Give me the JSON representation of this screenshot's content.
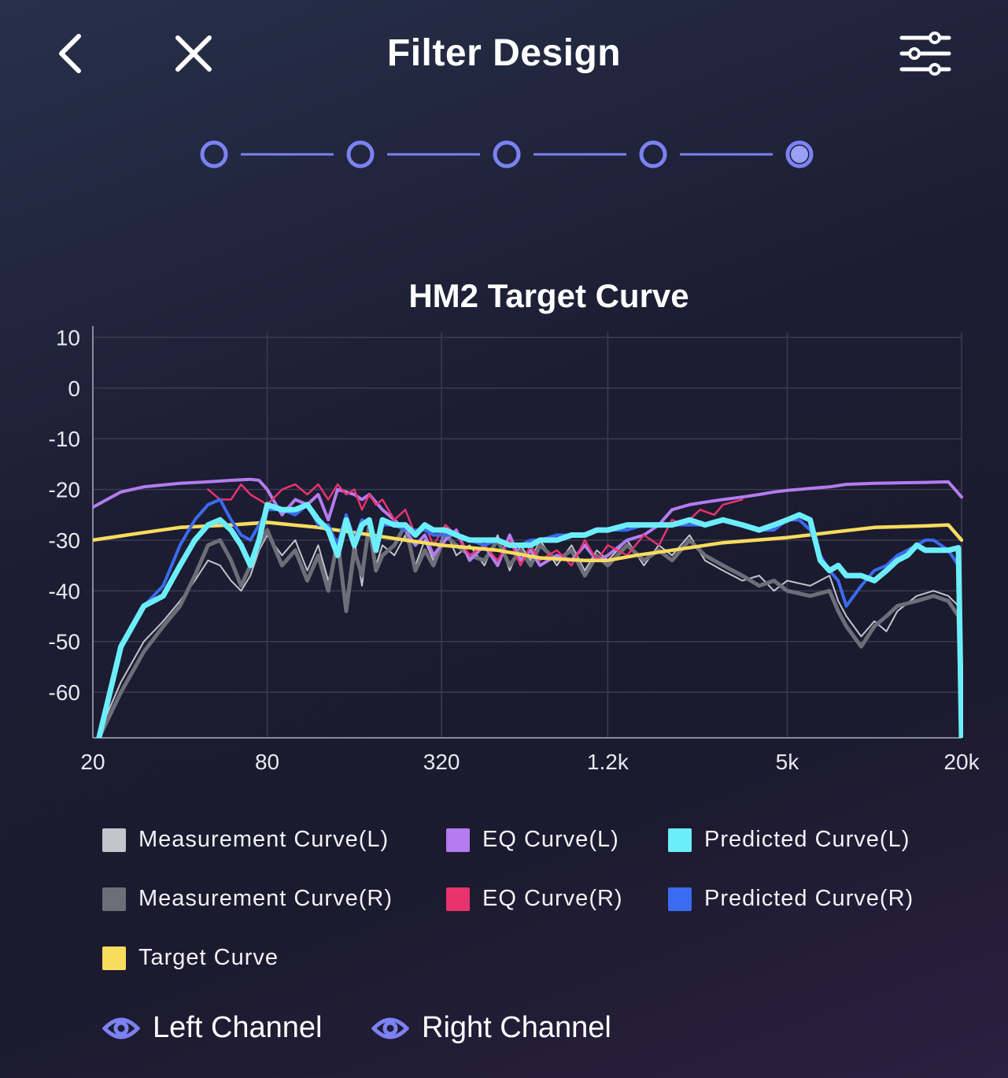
{
  "header": {
    "title": "Filter Design",
    "back_icon": "chevron-left-icon",
    "close_icon": "close-icon",
    "settings_icon": "sliders-icon"
  },
  "stepper": {
    "total_steps": 5,
    "current_step": 5
  },
  "colors": {
    "accent": "#7b82f2",
    "measurement_l": "#c4c4cc",
    "measurement_r": "#6e6e78",
    "eq_l": "#b47cf0",
    "eq_r": "#e8336e",
    "predicted_l": "#6ceefa",
    "predicted_r": "#3a6cf0",
    "target": "#f8dc5e"
  },
  "chart_data": {
    "type": "line",
    "title": "HM2 Target Curve",
    "xscale": "log",
    "xlim": [
      20,
      20000
    ],
    "ylim": [
      -69,
      11
    ],
    "xticks": [
      20,
      80,
      320,
      1200,
      5000,
      20000
    ],
    "xtick_labels": [
      "20",
      "80",
      "320",
      "1.2k",
      "5k",
      "20k"
    ],
    "yticks": [
      10,
      0,
      -10,
      -20,
      -30,
      -40,
      -50,
      -60
    ],
    "ytick_labels": [
      "10",
      "0",
      "-10",
      "-20",
      "-30",
      "-40",
      "-50",
      "-60"
    ],
    "grid": true,
    "series": [
      {
        "name": "Measurement Curve(L)",
        "color": "#c4c4cc",
        "x": [
          21,
          25,
          30,
          35,
          40,
          45,
          50,
          55,
          60,
          65,
          70,
          75,
          80,
          90,
          100,
          110,
          120,
          130,
          140,
          150,
          160,
          170,
          180,
          190,
          200,
          220,
          240,
          260,
          280,
          300,
          330,
          360,
          400,
          450,
          500,
          550,
          600,
          650,
          700,
          800,
          900,
          1000,
          1100,
          1200,
          1400,
          1600,
          1800,
          2000,
          2300,
          2600,
          3000,
          3500,
          4000,
          4500,
          5000,
          6000,
          7000,
          7500,
          8000,
          9000,
          10000,
          11000,
          12000,
          14000,
          16000,
          18000,
          19500,
          20000
        ],
        "y": [
          -68,
          -58,
          -50,
          -46,
          -42,
          -38,
          -34,
          -35,
          -38,
          -40,
          -37,
          -32,
          -29,
          -33,
          -30,
          -36,
          -31,
          -38,
          -32,
          -42,
          -30,
          -39,
          -28,
          -35,
          -31,
          -33,
          -29,
          -35,
          -30,
          -34,
          -28,
          -33,
          -31,
          -35,
          -29,
          -36,
          -31,
          -34,
          -30,
          -35,
          -31,
          -36,
          -32,
          -34,
          -30,
          -35,
          -31,
          -33,
          -29,
          -34,
          -36,
          -38,
          -37,
          -40,
          -38,
          -39,
          -37,
          -42,
          -45,
          -49,
          -46,
          -48,
          -44,
          -41,
          -40,
          -41,
          -43,
          -69
        ]
      },
      {
        "name": "Measurement Curve(R)",
        "color": "#6e6e78",
        "x": [
          21,
          25,
          30,
          35,
          40,
          45,
          50,
          55,
          60,
          65,
          70,
          75,
          80,
          90,
          100,
          110,
          120,
          130,
          140,
          150,
          160,
          170,
          180,
          190,
          200,
          220,
          240,
          260,
          280,
          300,
          330,
          360,
          400,
          450,
          500,
          550,
          600,
          650,
          700,
          800,
          900,
          1000,
          1100,
          1200,
          1400,
          1600,
          1800,
          2000,
          2300,
          2600,
          3000,
          3500,
          4000,
          4500,
          5000,
          6000,
          7000,
          7500,
          8000,
          9000,
          10000,
          11000,
          12000,
          14000,
          16000,
          18000,
          19500,
          20000
        ],
        "y": [
          -69,
          -60,
          -52,
          -47,
          -43,
          -37,
          -31,
          -30,
          -34,
          -39,
          -35,
          -31,
          -28,
          -35,
          -32,
          -38,
          -33,
          -40,
          -30,
          -44,
          -32,
          -37,
          -27,
          -36,
          -33,
          -31,
          -27,
          -36,
          -32,
          -35,
          -29,
          -31,
          -33,
          -34,
          -30,
          -35,
          -32,
          -35,
          -31,
          -34,
          -32,
          -37,
          -33,
          -35,
          -31,
          -34,
          -32,
          -34,
          -30,
          -33,
          -35,
          -37,
          -39,
          -38,
          -40,
          -41,
          -40,
          -44,
          -47,
          -51,
          -47,
          -45,
          -43,
          -42,
          -41,
          -42,
          -45,
          -69
        ]
      },
      {
        "name": "EQ Curve(L)",
        "color": "#b47cf0",
        "x": [
          20,
          25,
          30,
          40,
          50,
          60,
          70,
          75,
          80,
          90,
          100,
          110,
          120,
          130,
          140,
          150,
          160,
          170,
          180,
          200,
          220,
          240,
          260,
          280,
          300,
          330,
          360,
          400,
          450,
          500,
          550,
          600,
          650,
          700,
          800,
          900,
          1000,
          1100,
          1200,
          1400,
          1600,
          1800,
          2000,
          2300,
          2600,
          3000,
          3500,
          4000,
          4500,
          5000,
          6000,
          7000,
          8000,
          10000,
          12000,
          15000,
          18000,
          20000
        ],
        "y": [
          -23.5,
          -20.5,
          -19.5,
          -18.8,
          -18.5,
          -18.2,
          -18,
          -18.2,
          -20,
          -25,
          -22,
          -23,
          -21,
          -26,
          -20,
          -20.5,
          -21,
          -22,
          -21,
          -24,
          -26,
          -28,
          -31,
          -29,
          -33,
          -30,
          -28,
          -34,
          -31,
          -35,
          -29,
          -34,
          -32,
          -35,
          -33,
          -34,
          -31,
          -34,
          -33,
          -30,
          -29,
          -27,
          -24,
          -23,
          -22.5,
          -22,
          -21.5,
          -21,
          -20.5,
          -20.2,
          -19.8,
          -19.5,
          -19,
          -18.8,
          -18.7,
          -18.6,
          -18.5,
          -21.5
        ]
      },
      {
        "name": "EQ Curve(R)",
        "color": "#e8336e",
        "x": [
          50,
          55,
          60,
          65,
          70,
          80,
          90,
          100,
          110,
          120,
          130,
          140,
          150,
          160,
          170,
          180,
          190,
          200,
          220,
          240,
          260,
          280,
          300,
          330,
          360,
          400,
          450,
          500,
          550,
          600,
          650,
          700,
          800,
          900,
          1000,
          1100,
          1200,
          1400,
          1600,
          1800,
          2000,
          2200,
          2500,
          2800,
          3000,
          3500
        ],
        "y": [
          -20,
          -22,
          -22,
          -19,
          -21,
          -23,
          -20,
          -19,
          -21,
          -19,
          -22,
          -19,
          -21,
          -20,
          -24,
          -21,
          -23,
          -22,
          -26,
          -24,
          -29,
          -27,
          -31,
          -27,
          -29,
          -33,
          -31,
          -34,
          -30,
          -35,
          -31,
          -34,
          -32,
          -35,
          -30,
          -34,
          -31,
          -33,
          -29,
          -31,
          -26,
          -27,
          -24,
          -25,
          -23,
          -22
        ]
      },
      {
        "name": "Predicted Curve(L)",
        "color": "#6ceefa",
        "x": [
          21,
          25,
          30,
          35,
          40,
          45,
          50,
          55,
          60,
          65,
          70,
          75,
          80,
          90,
          100,
          110,
          120,
          130,
          140,
          150,
          160,
          170,
          180,
          190,
          200,
          220,
          240,
          260,
          280,
          300,
          330,
          360,
          400,
          450,
          500,
          550,
          600,
          650,
          700,
          800,
          900,
          1000,
          1100,
          1200,
          1400,
          1600,
          1800,
          2000,
          2300,
          2600,
          3000,
          3500,
          4000,
          4500,
          5000,
          5500,
          6000,
          6500,
          7000,
          7500,
          8000,
          9000,
          10000,
          11000,
          12000,
          13000,
          14000,
          15000,
          16000,
          18000,
          19500,
          20000
        ],
        "y": [
          -69,
          -51,
          -43,
          -41,
          -35,
          -30,
          -27,
          -26,
          -28,
          -31,
          -35,
          -30,
          -23,
          -24,
          -24,
          -23,
          -26,
          -28,
          -33,
          -26,
          -31,
          -27,
          -26,
          -32,
          -26,
          -27,
          -27,
          -29,
          -27,
          -28,
          -28,
          -29,
          -30,
          -30,
          -30,
          -31,
          -31,
          -31,
          -30,
          -30,
          -29,
          -29,
          -28,
          -28,
          -27,
          -27,
          -27,
          -27,
          -26,
          -27,
          -26,
          -27,
          -28,
          -27,
          -26,
          -25,
          -26,
          -34,
          -36,
          -35,
          -37,
          -37,
          -38,
          -36,
          -34,
          -33,
          -31,
          -32,
          -32,
          -32,
          -31.5,
          -69
        ]
      },
      {
        "name": "Predicted Curve(R)",
        "color": "#3a6cf0",
        "x": [
          21,
          25,
          30,
          35,
          40,
          45,
          50,
          55,
          60,
          65,
          70,
          75,
          80,
          90,
          100,
          110,
          120,
          130,
          140,
          150,
          160,
          170,
          180,
          190,
          200,
          220,
          240,
          260,
          280,
          300,
          330,
          360,
          400,
          450,
          500,
          550,
          600,
          650,
          700,
          800,
          900,
          1000,
          1100,
          1200,
          1400,
          1600,
          1800,
          2000,
          2300,
          2600,
          3000,
          3500,
          4000,
          4500,
          5000,
          5500,
          6000,
          6500,
          7000,
          7500,
          8000,
          9000,
          10000,
          11000,
          12000,
          13000,
          14000,
          15000,
          16000,
          18000,
          19500,
          20000
        ],
        "y": [
          -69,
          -51,
          -43,
          -39,
          -31,
          -26,
          -23,
          -22,
          -26,
          -29,
          -30,
          -27,
          -24,
          -24,
          -25,
          -23,
          -27,
          -27,
          -31,
          -25,
          -30,
          -26,
          -27,
          -30,
          -27,
          -27,
          -28,
          -28,
          -28,
          -29,
          -29,
          -29,
          -30,
          -31,
          -30,
          -31,
          -31,
          -30,
          -30,
          -29,
          -29,
          -29,
          -28,
          -28,
          -28,
          -27,
          -27,
          -27,
          -27,
          -27,
          -26,
          -27,
          -28,
          -28,
          -26,
          -26,
          -28,
          -33,
          -36,
          -38,
          -43,
          -39,
          -36,
          -35,
          -33,
          -32,
          -31,
          -30,
          -30,
          -32,
          -35,
          -69
        ]
      },
      {
        "name": "Target Curve",
        "color": "#f8dc5e",
        "x": [
          20,
          30,
          40,
          60,
          80,
          120,
          160,
          240,
          320,
          500,
          700,
          1000,
          1200,
          1500,
          2000,
          3000,
          5000,
          7000,
          10000,
          15000,
          18000,
          20000
        ],
        "y": [
          -30,
          -28.5,
          -27.5,
          -27,
          -26.5,
          -27.5,
          -28.5,
          -30,
          -31,
          -32,
          -33.5,
          -34,
          -34,
          -33,
          -32,
          -30.5,
          -29.5,
          -28.5,
          -27.5,
          -27.2,
          -27,
          -30
        ]
      }
    ]
  },
  "legend": [
    {
      "label": "Measurement Curve(L)",
      "color": "#c4c4cc"
    },
    {
      "label": "EQ Curve(L)",
      "color": "#b47cf0"
    },
    {
      "label": "Predicted Curve(L)",
      "color": "#6ceefa"
    },
    {
      "label": "Measurement Curve(R)",
      "color": "#6e6e78"
    },
    {
      "label": "EQ Curve(R)",
      "color": "#e8336e"
    },
    {
      "label": "Predicted Curve(R)",
      "color": "#3a6cf0"
    },
    {
      "label": "Target Curve",
      "color": "#f8dc5e"
    }
  ],
  "channels": {
    "left_label": "Left Channel",
    "right_label": "Right Channel",
    "icon": "eye-icon"
  }
}
